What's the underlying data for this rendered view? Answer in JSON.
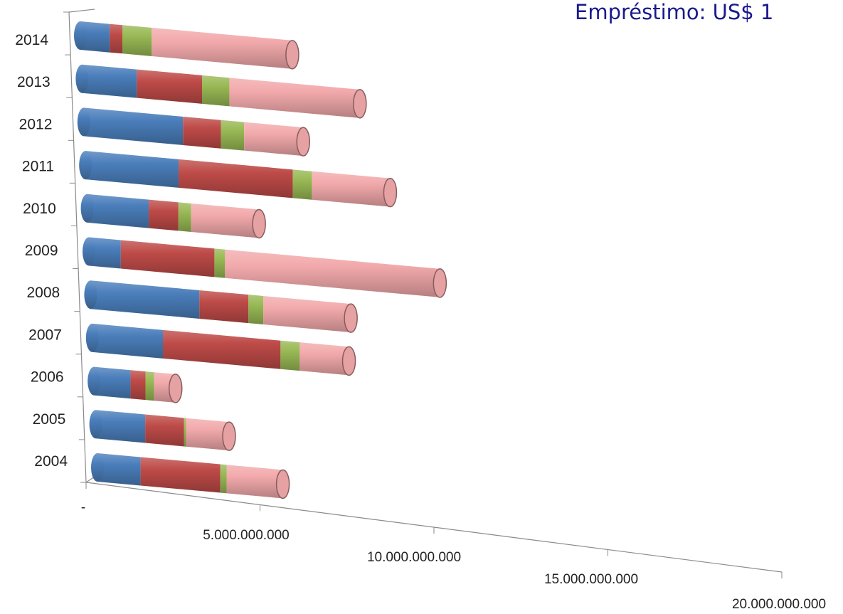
{
  "chart_data": {
    "type": "bar",
    "orientation": "horizontal",
    "stacked": true,
    "style": "3d-cylinder",
    "title": "Empréstimo: US$  1",
    "categories": [
      "2004",
      "2005",
      "2006",
      "2007",
      "2008",
      "2009",
      "2010",
      "2011",
      "2012",
      "2013",
      "2014"
    ],
    "series": [
      {
        "color": "#4a7ebb",
        "values": [
          2000000000,
          2300000000,
          1700000000,
          3300000000,
          5100000000,
          1500000000,
          2900000000,
          4400000000,
          4700000000,
          2600000000,
          1400000000
        ]
      },
      {
        "color": "#be4b48",
        "values": [
          3700000000,
          1800000000,
          700000000,
          5500000000,
          2300000000,
          4400000000,
          1400000000,
          5400000000,
          1800000000,
          3100000000,
          600000000
        ]
      },
      {
        "color": "#98b954",
        "values": [
          300000000,
          100000000,
          400000000,
          900000000,
          700000000,
          500000000,
          600000000,
          900000000,
          1100000000,
          1300000000,
          1400000000
        ]
      },
      {
        "color": "#f2a9ab",
        "values": [
          2600000000,
          2000000000,
          1000000000,
          2300000000,
          4100000000,
          10100000000,
          3200000000,
          3700000000,
          2800000000,
          6200000000,
          6700000000
        ]
      }
    ],
    "x_ticks": [
      "-",
      "5.000.000.000",
      "10.000.000.000",
      "15.000.000.000",
      "20.000.000.000"
    ],
    "xlim": [
      0,
      20000000000
    ],
    "xlabel": "",
    "ylabel": "",
    "legend": "none",
    "grid": false
  }
}
